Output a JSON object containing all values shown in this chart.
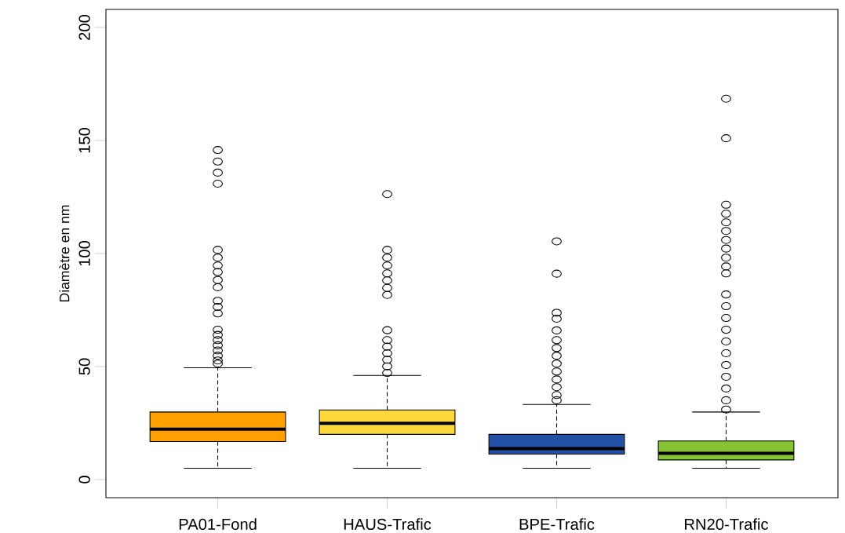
{
  "chart_data": {
    "type": "box",
    "ylabel": "Diamètre en nm",
    "categories": [
      "PA01-Fond",
      "HAUS-Trafic",
      "BPE-Trafic",
      "RN20-Trafic"
    ],
    "colors": [
      "#ff9f00",
      "#ffd83a",
      "#2250a5",
      "#85c332"
    ],
    "boxes": [
      {
        "low": 5,
        "q1": 16.8,
        "median": 22.3,
        "q3": 29.9,
        "high": 49.5,
        "outliers": [
          145.8,
          140.7,
          135.8,
          130.9,
          101.6,
          98.2,
          94.7,
          91.8,
          88.3,
          85.1,
          79.1,
          76.4,
          73.5,
          66.3,
          64,
          61.7,
          59.4,
          57.1,
          54.8,
          52.7,
          51.3
        ]
      },
      {
        "low": 5,
        "q1": 20,
        "median": 24.9,
        "q3": 30.8,
        "high": 46.1,
        "outliers": [
          126.3,
          101.6,
          98.2,
          94.7,
          91.2,
          88.1,
          84.8,
          81.7,
          66.1,
          61.7,
          58.8,
          55.9,
          53,
          50.1,
          47.2
        ]
      },
      {
        "low": 5,
        "q1": 11.3,
        "median": 13.7,
        "q3": 20,
        "high": 33.2,
        "outliers": [
          105.4,
          91.1,
          73.8,
          71.2,
          66,
          61.7,
          58.2,
          54.8,
          51.3,
          47.8,
          44.3,
          40.9,
          37.4,
          35.1
        ]
      },
      {
        "low": 5,
        "q1": 8.7,
        "median": 11.6,
        "q3": 17.1,
        "high": 29.9,
        "outliers": [
          168.5,
          151,
          121.6,
          117.6,
          113.8,
          110,
          106,
          102.2,
          98.2,
          94.3,
          91.2,
          81.9,
          76.7,
          71.5,
          66.3,
          61.1,
          55.9,
          50.7,
          45.5,
          40.3,
          35.1,
          31
        ]
      }
    ],
    "ylim": [
      -8,
      208
    ],
    "yticks": [
      0,
      50,
      100,
      150,
      200
    ],
    "marker": "circle"
  }
}
